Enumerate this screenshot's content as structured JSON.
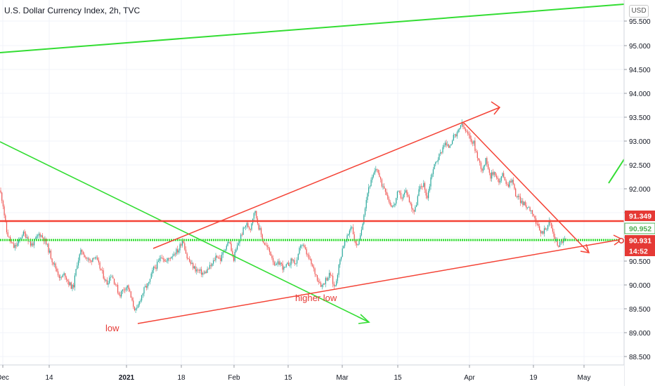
{
  "header": {
    "title": "U.S. Dollar Currency Index, 2h, TVC",
    "currency_button": "USD"
  },
  "chart_data": {
    "type": "candlestick",
    "symbol": "U.S. Dollar Currency Index",
    "interval": "2h",
    "source": "TVC",
    "y_axis": {
      "ticks": [
        "95.500",
        "95.000",
        "94.500",
        "94.000",
        "93.500",
        "93.000",
        "92.500",
        "92.000",
        "91.500",
        "91.000",
        "90.500",
        "90.000",
        "89.500",
        "89.000",
        "88.500"
      ],
      "range": [
        88.35,
        95.9
      ]
    },
    "x_axis": {
      "ticks": [
        "Dec",
        "14",
        "2021",
        "18",
        "Feb",
        "15",
        "Mar",
        "15",
        "Apr",
        "19",
        "May"
      ]
    },
    "price_labels": [
      {
        "value": "91.349",
        "color": "#e53935"
      },
      {
        "value": "90.952",
        "color": "#4caf50"
      },
      {
        "value": "90.931",
        "color": "#e53935"
      },
      {
        "value": "14:52",
        "color": "#e53935"
      }
    ],
    "annotations": [
      {
        "text": "low",
        "color": "#e53935"
      },
      {
        "text": "higher low",
        "color": "#e53935"
      }
    ],
    "colors": {
      "up": "#26a69a",
      "down": "#ef5350",
      "line_red": "#f44336",
      "line_green": "#33dd33"
    },
    "path": [
      [
        0,
        91.95
      ],
      [
        4,
        91.7
      ],
      [
        9,
        91.1
      ],
      [
        14,
        90.9
      ],
      [
        20,
        90.75
      ],
      [
        26,
        90.85
      ],
      [
        32,
        91.05
      ],
      [
        38,
        91.0
      ],
      [
        44,
        90.8
      ],
      [
        50,
        90.9
      ],
      [
        56,
        91.05
      ],
      [
        62,
        90.95
      ],
      [
        68,
        90.75
      ],
      [
        74,
        90.5
      ],
      [
        80,
        90.3
      ],
      [
        86,
        90.1
      ],
      [
        92,
        90.2
      ],
      [
        98,
        90.0
      ],
      [
        104,
        89.9
      ],
      [
        110,
        90.45
      ],
      [
        116,
        90.7
      ],
      [
        122,
        90.55
      ],
      [
        128,
        90.45
      ],
      [
        134,
        90.6
      ],
      [
        140,
        90.4
      ],
      [
        146,
        90.2
      ],
      [
        152,
        90.0
      ],
      [
        158,
        90.2
      ],
      [
        164,
        90.0
      ],
      [
        170,
        89.75
      ],
      [
        176,
        89.9
      ],
      [
        182,
        89.95
      ],
      [
        188,
        89.6
      ],
      [
        194,
        89.4
      ],
      [
        200,
        89.7
      ],
      [
        206,
        89.9
      ],
      [
        212,
        90.0
      ],
      [
        218,
        90.3
      ],
      [
        224,
        90.4
      ],
      [
        230,
        90.6
      ],
      [
        236,
        90.45
      ],
      [
        242,
        90.55
      ],
      [
        248,
        90.65
      ],
      [
        254,
        90.7
      ],
      [
        260,
        90.95
      ],
      [
        266,
        90.55
      ],
      [
        272,
        90.4
      ],
      [
        278,
        90.3
      ],
      [
        284,
        90.25
      ],
      [
        290,
        90.2
      ],
      [
        296,
        90.3
      ],
      [
        302,
        90.4
      ],
      [
        308,
        90.6
      ],
      [
        314,
        90.5
      ],
      [
        320,
        90.75
      ],
      [
        326,
        90.9
      ],
      [
        332,
        90.5
      ],
      [
        338,
        90.8
      ],
      [
        344,
        91.05
      ],
      [
        350,
        91.25
      ],
      [
        356,
        91.15
      ],
      [
        362,
        91.55
      ],
      [
        368,
        91.2
      ],
      [
        374,
        90.9
      ],
      [
        380,
        90.75
      ],
      [
        386,
        90.6
      ],
      [
        392,
        90.35
      ],
      [
        398,
        90.45
      ],
      [
        404,
        90.3
      ],
      [
        410,
        90.4
      ],
      [
        416,
        90.5
      ],
      [
        422,
        90.4
      ],
      [
        428,
        90.85
      ],
      [
        434,
        90.7
      ],
      [
        440,
        90.5
      ],
      [
        446,
        90.3
      ],
      [
        452,
        90.1
      ],
      [
        458,
        89.95
      ],
      [
        464,
        90.1
      ],
      [
        470,
        90.2
      ],
      [
        476,
        89.9
      ],
      [
        482,
        90.35
      ],
      [
        488,
        90.8
      ],
      [
        494,
        90.95
      ],
      [
        500,
        91.25
      ],
      [
        506,
        90.8
      ],
      [
        512,
        90.9
      ],
      [
        518,
        91.5
      ],
      [
        524,
        92.0
      ],
      [
        530,
        92.2
      ],
      [
        536,
        92.45
      ],
      [
        542,
        92.1
      ],
      [
        548,
        92.0
      ],
      [
        554,
        91.7
      ],
      [
        560,
        91.6
      ],
      [
        566,
        91.9
      ],
      [
        572,
        91.8
      ],
      [
        578,
        91.95
      ],
      [
        584,
        91.65
      ],
      [
        590,
        91.5
      ],
      [
        596,
        91.95
      ],
      [
        602,
        92.1
      ],
      [
        608,
        91.8
      ],
      [
        614,
        92.3
      ],
      [
        620,
        92.55
      ],
      [
        626,
        92.7
      ],
      [
        632,
        92.95
      ],
      [
        638,
        92.85
      ],
      [
        644,
        93.05
      ],
      [
        650,
        93.1
      ],
      [
        656,
        93.35
      ],
      [
        662,
        93.2
      ],
      [
        668,
        93.05
      ],
      [
        674,
        92.95
      ],
      [
        680,
        92.6
      ],
      [
        686,
        92.4
      ],
      [
        692,
        92.6
      ],
      [
        698,
        92.25
      ],
      [
        704,
        92.35
      ],
      [
        710,
        92.1
      ],
      [
        716,
        92.3
      ],
      [
        722,
        92.05
      ],
      [
        728,
        92.2
      ],
      [
        734,
        91.85
      ],
      [
        740,
        91.75
      ],
      [
        746,
        91.65
      ],
      [
        752,
        91.6
      ],
      [
        758,
        91.5
      ],
      [
        764,
        91.2
      ],
      [
        770,
        91.05
      ],
      [
        776,
        91.15
      ],
      [
        782,
        91.3
      ],
      [
        788,
        91.0
      ],
      [
        794,
        90.8
      ],
      [
        800,
        90.9
      ],
      [
        806,
        90.93
      ]
    ]
  }
}
